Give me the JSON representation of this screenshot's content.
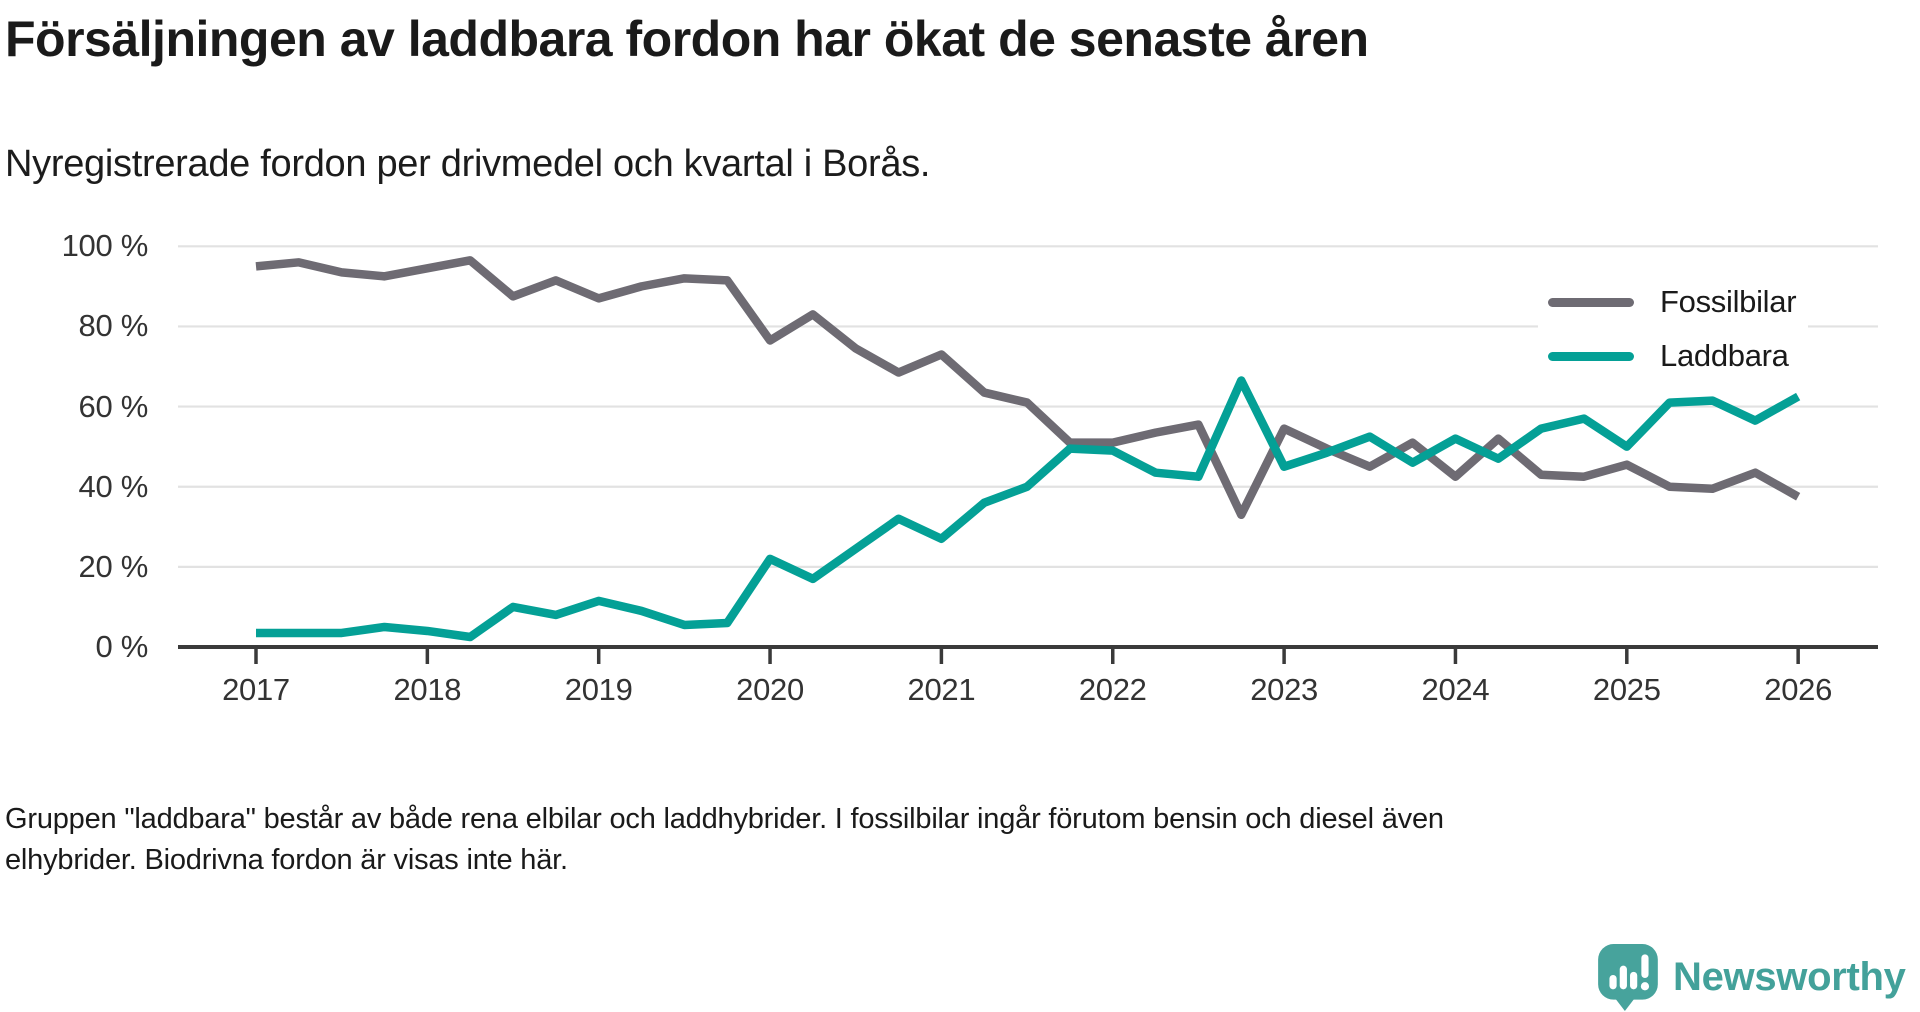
{
  "header": {
    "title": "Försäljningen av laddbara fordon har ökat de senaste åren",
    "subtitle": "Nyregistrerade fordon per drivmedel och kvartal i Borås."
  },
  "chart_data": {
    "type": "line",
    "x_unit": "quarter",
    "x": [
      "2017-Q1",
      "2017-Q2",
      "2017-Q3",
      "2017-Q4",
      "2018-Q1",
      "2018-Q2",
      "2018-Q3",
      "2018-Q4",
      "2019-Q1",
      "2019-Q2",
      "2019-Q3",
      "2019-Q4",
      "2020-Q1",
      "2020-Q2",
      "2020-Q3",
      "2020-Q4",
      "2021-Q1",
      "2021-Q2",
      "2021-Q3",
      "2021-Q4",
      "2022-Q1",
      "2022-Q2",
      "2022-Q3",
      "2022-Q4",
      "2023-Q1",
      "2023-Q2",
      "2023-Q3",
      "2023-Q4",
      "2024-Q1",
      "2024-Q2",
      "2024-Q3",
      "2024-Q4",
      "2025-Q1",
      "2025-Q2",
      "2025-Q3",
      "2025-Q4",
      "2026-Q1"
    ],
    "series": [
      {
        "name": "Fossilbilar",
        "color": "#6e6b73",
        "values": [
          95,
          96,
          93.5,
          92.5,
          94.5,
          96.5,
          87.5,
          91.5,
          87,
          90,
          92,
          91.5,
          76.5,
          83,
          74.5,
          68.5,
          73,
          63.5,
          61,
          51,
          51,
          53.5,
          55.5,
          33,
          54.5,
          49.5,
          45,
          51,
          42.5,
          52,
          43,
          42.5,
          45.5,
          40,
          39.5,
          43.5,
          37.5
        ]
      },
      {
        "name": "Laddbara",
        "color": "#04a096",
        "values": [
          3.5,
          3.5,
          3.5,
          5,
          4,
          2.5,
          10,
          8,
          11.5,
          9,
          5.5,
          6,
          22,
          17,
          24.5,
          32,
          27,
          36,
          40,
          49.5,
          49,
          43.5,
          42.5,
          66.5,
          45,
          48.5,
          52.5,
          46,
          52,
          47,
          54.5,
          57,
          50,
          61,
          61.5,
          56.5,
          62.5
        ]
      }
    ],
    "x_ticks": [
      {
        "label": "2017",
        "q": 0
      },
      {
        "label": "2018",
        "q": 4
      },
      {
        "label": "2019",
        "q": 8
      },
      {
        "label": "2020",
        "q": 12
      },
      {
        "label": "2021",
        "q": 16
      },
      {
        "label": "2022",
        "q": 20
      },
      {
        "label": "2023",
        "q": 24
      },
      {
        "label": "2024",
        "q": 28
      },
      {
        "label": "2025",
        "q": 32
      },
      {
        "label": "2026",
        "q": 36
      }
    ],
    "y_ticks": [
      {
        "label": "0 %",
        "value": 0
      },
      {
        "label": "20 %",
        "value": 20
      },
      {
        "label": "40 %",
        "value": 40
      },
      {
        "label": "60 %",
        "value": 60
      },
      {
        "label": "80 %",
        "value": 80
      },
      {
        "label": "100 %",
        "value": 100
      }
    ],
    "ylim": [
      0,
      100
    ],
    "grid": "horizontal",
    "legend_position": "upper-right"
  },
  "footer": {
    "lines": [
      "Gruppen \"laddbara\" består av både rena elbilar och laddhybrider. I fossilbilar ingår förutom bensin och diesel även",
      "elhybrider. Biodrivna fordon är visas inte här."
    ]
  },
  "brand": {
    "name": "Newsworthy",
    "color": "#43a19a"
  }
}
